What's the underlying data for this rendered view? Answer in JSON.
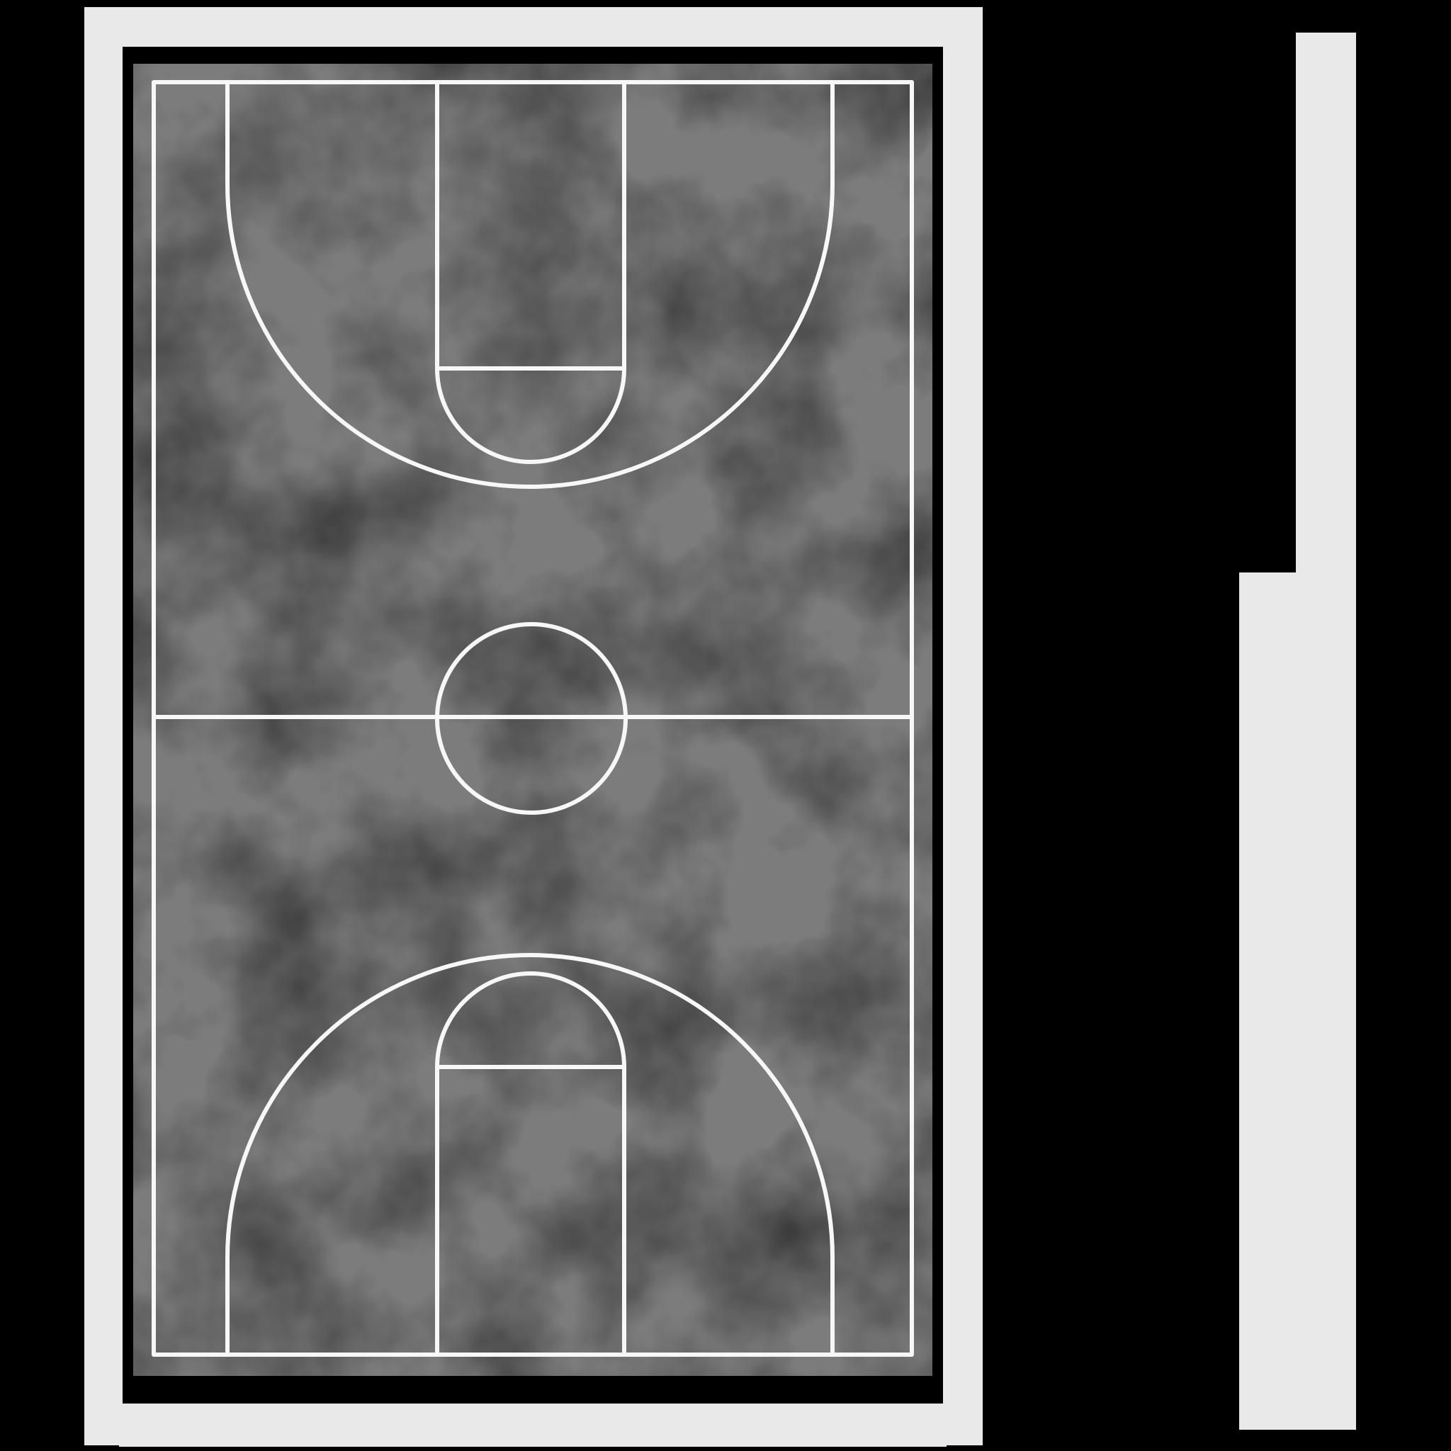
{
  "colors": {
    "background": "#000000",
    "frame": "#e9e9e9",
    "frame_inner": "#000000",
    "court_surface": "#7c7c7c",
    "court_surface_dark": "#6c6c6c",
    "court_lines": "#f7f7f7",
    "side_panel": "#e9e9e9"
  },
  "icons": {
    "court": "basketball-court-icon"
  }
}
